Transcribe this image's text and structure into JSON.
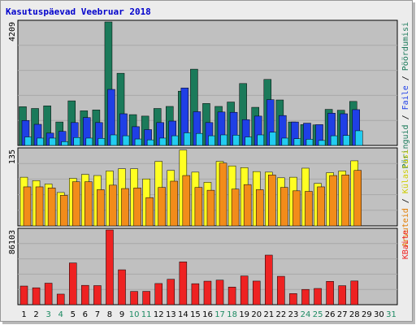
{
  "chart_data": {
    "type": "bar",
    "title": "Kasutuspäevad Veebruar 2018",
    "categories": [
      "1",
      "2",
      "3",
      "4",
      "5",
      "6",
      "7",
      "8",
      "9",
      "10",
      "11",
      "12",
      "13",
      "14",
      "15",
      "16",
      "17",
      "18",
      "19",
      "20",
      "21",
      "22",
      "23",
      "24",
      "25",
      "26",
      "27",
      "28",
      "29",
      "30",
      "31"
    ],
    "weekend_days": [
      "3",
      "4",
      "10",
      "11",
      "17",
      "18",
      "24",
      "25",
      "31"
    ],
    "colors": {
      "weekday_label": "#000000",
      "weekend_label": "#1c8a62",
      "plot_bg": "#c0c0c0",
      "visits": "#1b7a5a",
      "pages": "#1f3fe6",
      "files": "#22ccf0",
      "hosts": "#ffff22",
      "hits": "#f28c1a",
      "kbytes": "#ee2222",
      "grid": "#a8a8a8"
    },
    "panels": [
      {
        "name": "top",
        "y_tick_label": "4209",
        "ylim": [
          0,
          4209
        ],
        "right_labels": [
          {
            "text": "Päringuid",
            "color": "#1b7a5a"
          },
          {
            "text": " / ",
            "color": "#000000"
          },
          {
            "text": "Faile",
            "color": "#1f3fe6"
          },
          {
            "text": " / ",
            "color": "#000000"
          },
          {
            "text": "Pöördumisi",
            "color": "#1b7a5a"
          }
        ],
        "series": [
          {
            "name": "Päringuid",
            "color": "#1b7a5a",
            "values": [
              1320,
              1260,
              1350,
              800,
              1520,
              1180,
              1210,
              4209,
              2460,
              1050,
              1000,
              1260,
              1330,
              1850,
              2600,
              1430,
              1330,
              1480,
              2110,
              1300,
              2250,
              1550,
              800,
              710,
              700,
              1230,
              1200,
              1500,
              0,
              0,
              0
            ]
          },
          {
            "name": "Faile",
            "color": "#1f3fe6",
            "values": [
              850,
              720,
              420,
              480,
              780,
              950,
              780,
              1910,
              1080,
              640,
              540,
              780,
              830,
              1960,
              1150,
              780,
              1140,
              1130,
              880,
              1000,
              1560,
              1020,
              800,
              760,
              710,
              1100,
              1080,
              1220,
              0,
              0,
              0
            ]
          },
          {
            "name": "Pöördumisi",
            "color": "#22ccf0",
            "values": [
              290,
              250,
              250,
              130,
              270,
              250,
              240,
              360,
              330,
              220,
              190,
              250,
              330,
              430,
              410,
              330,
              360,
              350,
              290,
              360,
              450,
              250,
              230,
              210,
              170,
              330,
              340,
              500,
              0,
              0,
              0
            ]
          }
        ]
      },
      {
        "name": "middle",
        "y_tick_label": "135",
        "ylim": [
          0,
          135
        ],
        "right_labels": [
          {
            "text": "Arvuteid",
            "color": "#e07b00"
          },
          {
            "text": " / ",
            "color": "#000000"
          },
          {
            "text": "Külastusi",
            "color": "#cccc00"
          }
        ],
        "series": [
          {
            "name": "Külastusi",
            "color": "#ffff22",
            "values": [
              86,
              80,
              74,
              59,
              84,
              91,
              89,
              97,
              101,
              101,
              83,
              114,
              98,
              134,
              95,
              77,
              114,
              106,
              103,
              96,
              95,
              85,
              86,
              102,
              75,
              94,
              97,
              115,
              0,
              0,
              0
            ]
          },
          {
            "name": "Arvuteid",
            "color": "#f28c1a",
            "values": [
              69,
              69,
              67,
              54,
              78,
              78,
              64,
              72,
              66,
              67,
              50,
              68,
              79,
              89,
              68,
              63,
              111,
              65,
              73,
              64,
              90,
              68,
              62,
              61,
              69,
              89,
              90,
              98,
              0,
              0,
              0
            ]
          }
        ]
      },
      {
        "name": "bottom",
        "y_tick_label": "86103",
        "ylim": [
          0,
          86103
        ],
        "right_labels": [
          {
            "text": "KBaite",
            "color": "#ee2222"
          }
        ],
        "series": [
          {
            "name": "KBaite",
            "color": "#ee2222",
            "values": [
              21500,
              19500,
              24800,
              12200,
              48100,
              22300,
              22000,
              86103,
              40200,
              15300,
              15400,
              24400,
              29300,
              49300,
              24200,
              27100,
              28300,
              20300,
              33100,
              27200,
              57100,
              32700,
              12800,
              17600,
              18700,
              26900,
              21900,
              27300,
              0,
              0,
              0
            ]
          }
        ]
      }
    ]
  }
}
